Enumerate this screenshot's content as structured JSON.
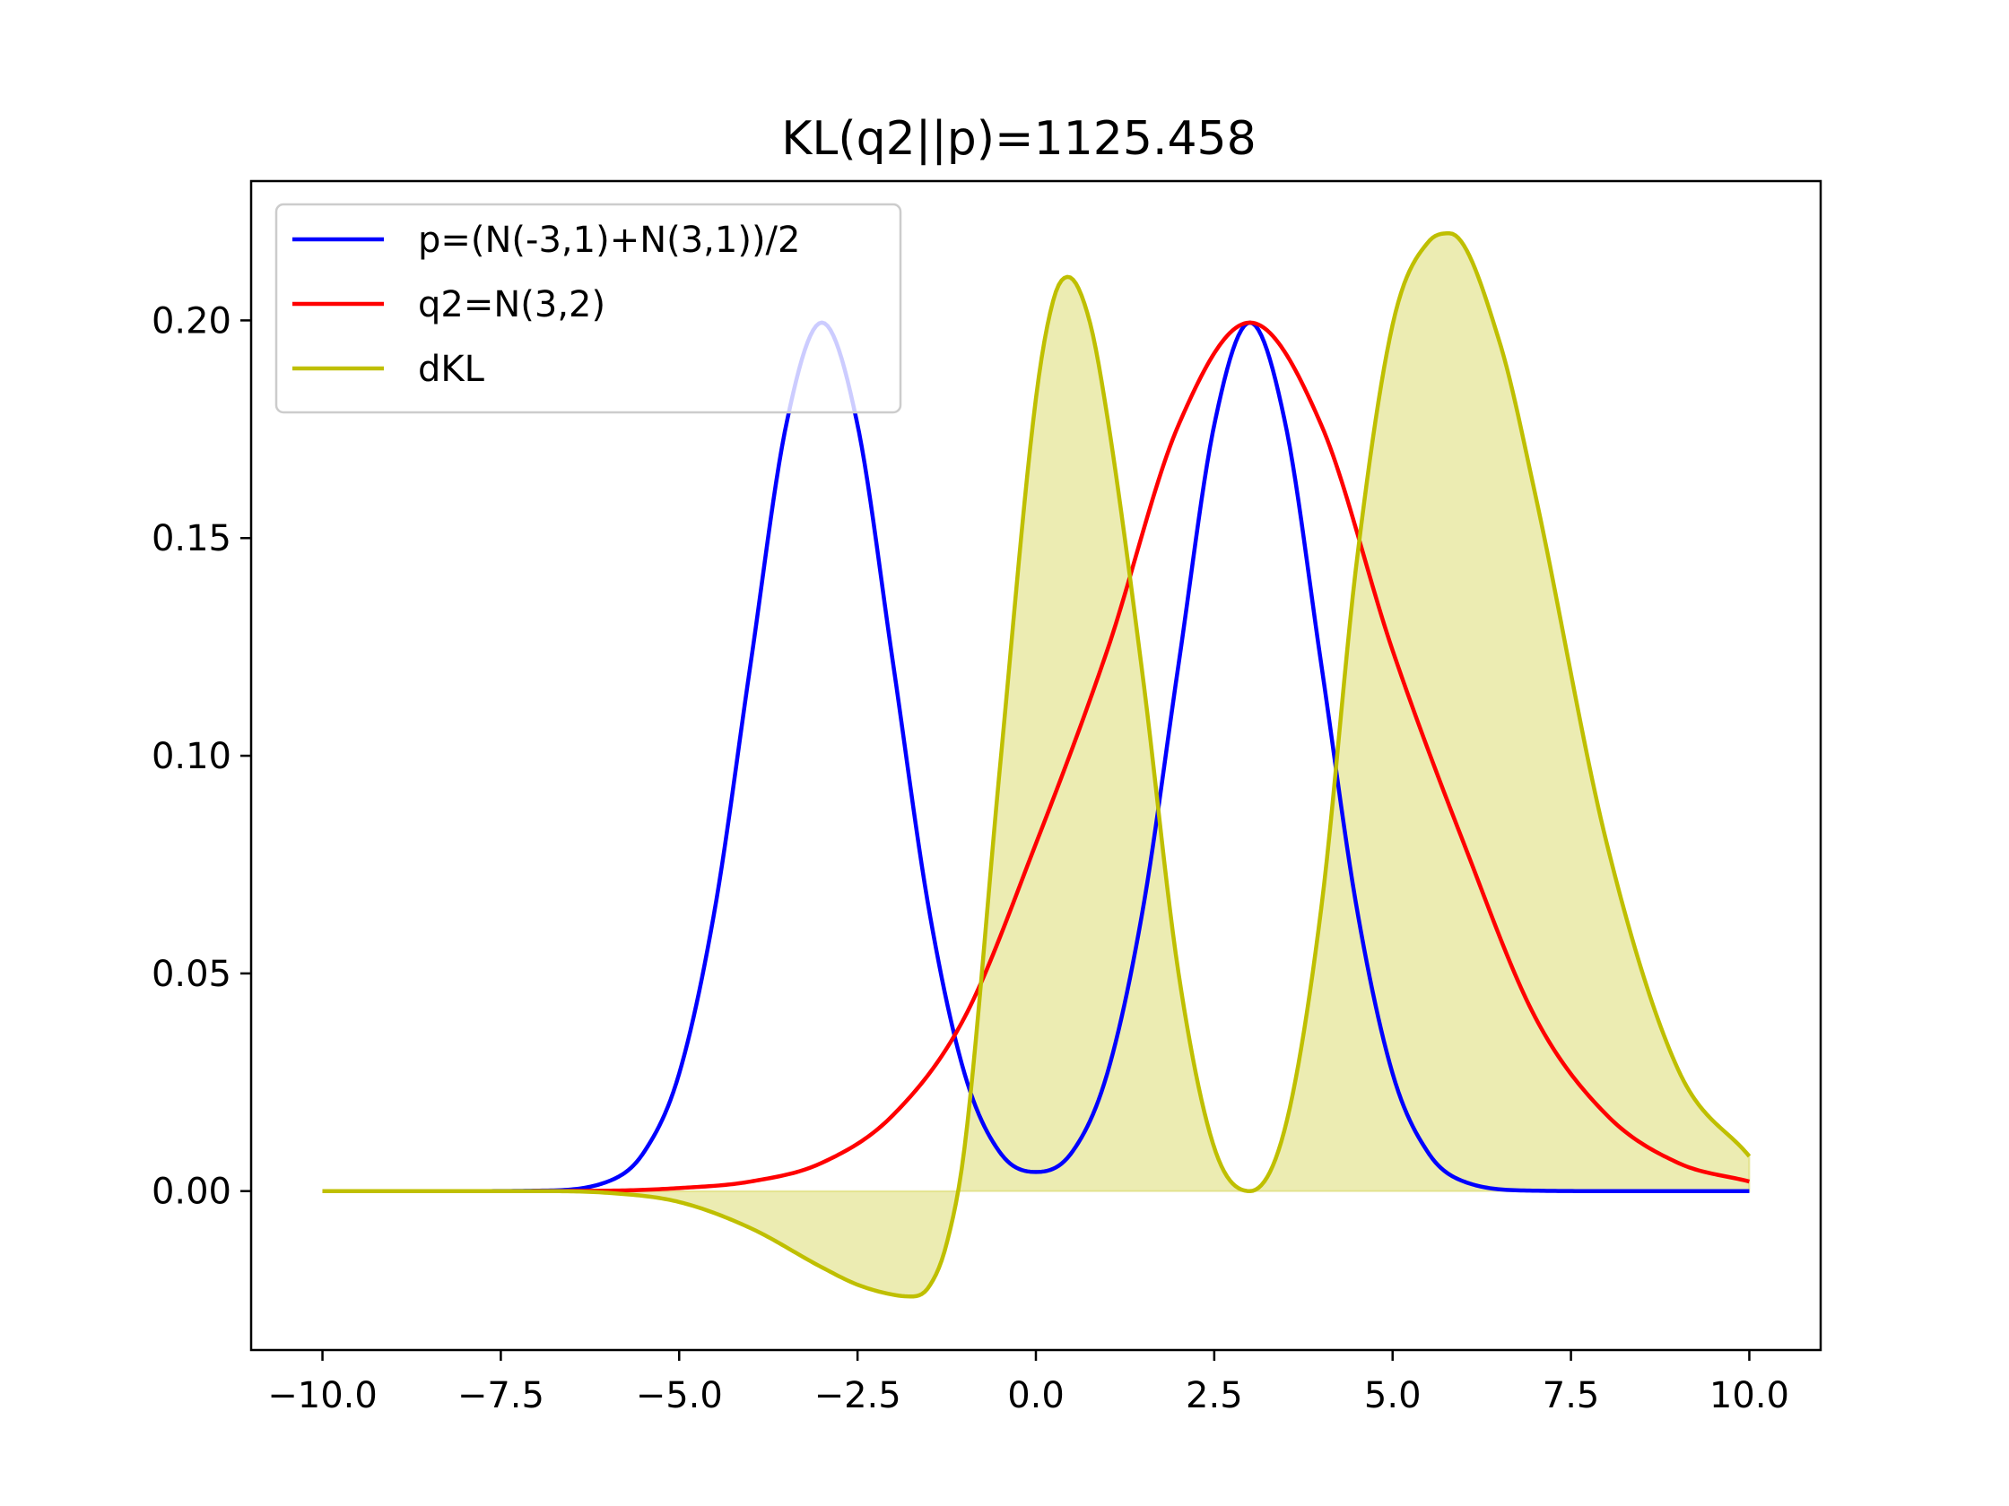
{
  "chart_data": {
    "type": "line",
    "title": "KL(q2||p)=1125.458",
    "xlabel": "",
    "ylabel": "",
    "xlim": [
      -11.0,
      11.0
    ],
    "ylim": [
      -0.0365,
      0.232
    ],
    "xticks": [
      -10.0,
      -7.5,
      -5.0,
      -2.5,
      0.0,
      2.5,
      5.0,
      7.5,
      10.0
    ],
    "xtick_labels": [
      "−10.0",
      "−7.5",
      "−5.0",
      "−2.5",
      "0.0",
      "2.5",
      "5.0",
      "7.5",
      "10.0"
    ],
    "yticks": [
      0.0,
      0.05,
      0.1,
      0.15,
      0.2
    ],
    "ytick_labels": [
      "0.00",
      "0.05",
      "0.10",
      "0.15",
      "0.20"
    ],
    "grid": false,
    "legend_position": "upper-left",
    "series": [
      {
        "name": "p=(N(-3,1)+N(3,1))/2",
        "color": "#0000ff",
        "x": [
          -10,
          -9,
          -8,
          -7,
          -6,
          -5.5,
          -5,
          -4.5,
          -4,
          -3.5,
          -3,
          -2.5,
          -2,
          -1.5,
          -1,
          -0.5,
          0,
          0.5,
          1,
          1.5,
          2,
          2.5,
          3,
          3.5,
          4,
          4.5,
          5,
          5.5,
          6,
          7,
          8,
          9,
          10
        ],
        "y": [
          0.0,
          0.0,
          0.0,
          0.0001,
          0.0022,
          0.0088,
          0.027,
          0.0648,
          0.121,
          0.176,
          0.1995,
          0.176,
          0.121,
          0.0648,
          0.027,
          0.0088,
          0.0044,
          0.0088,
          0.027,
          0.0648,
          0.121,
          0.176,
          0.1995,
          0.176,
          0.121,
          0.0648,
          0.027,
          0.0088,
          0.0022,
          0.0001,
          0.0,
          0.0,
          0.0
        ]
      },
      {
        "name": "q2=N(3,2)",
        "color": "#ff0000",
        "x": [
          -10,
          -8,
          -6,
          -5,
          -4,
          -3,
          -2,
          -1,
          0,
          1,
          2,
          3,
          4,
          5,
          6,
          7,
          8,
          9,
          10
        ],
        "y": [
          0.0,
          0.0,
          0.0001,
          0.0007,
          0.0022,
          0.0065,
          0.0175,
          0.0399,
          0.0798,
          0.1242,
          0.176,
          0.1995,
          0.176,
          0.1242,
          0.0798,
          0.0399,
          0.0175,
          0.0065,
          0.0022
        ]
      },
      {
        "name": "dKL",
        "color": "#bfbf00",
        "fill_to_zero": true,
        "x": [
          -10,
          -8,
          -7,
          -6,
          -5,
          -4,
          -3,
          -2.5,
          -2,
          -1.75,
          -1.5,
          -1.25,
          -1,
          -0.5,
          0,
          0.25,
          0.45,
          0.75,
          1,
          1.5,
          2,
          2.5,
          3,
          3.5,
          4,
          4.5,
          5,
          5.5,
          5.8,
          6.5,
          7,
          8,
          9,
          10
        ],
        "y": [
          0.0,
          0.0,
          0.0,
          -0.0004,
          -0.0025,
          -0.0085,
          -0.0175,
          -0.0215,
          -0.0238,
          -0.0242,
          -0.022,
          -0.012,
          0.01,
          0.098,
          0.182,
          0.205,
          0.21,
          0.2,
          0.178,
          0.118,
          0.05,
          0.01,
          0.0,
          0.015,
          0.065,
          0.145,
          0.199,
          0.218,
          0.22,
          0.195,
          0.16,
          0.08,
          0.028,
          0.008
        ]
      }
    ]
  }
}
